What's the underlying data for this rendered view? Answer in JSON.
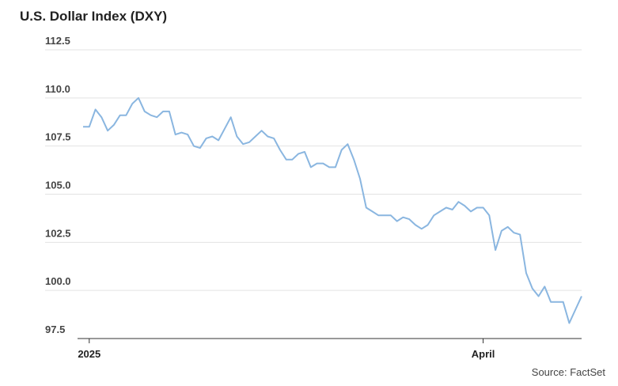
{
  "chart_data": {
    "type": "line",
    "title": "U.S. Dollar Index (DXY)",
    "source": "Source: FactSet",
    "categories": [
      null,
      "2025",
      null,
      null,
      null,
      null,
      null,
      null,
      null,
      null,
      null,
      null,
      null,
      null,
      null,
      null,
      null,
      null,
      null,
      null,
      null,
      null,
      null,
      null,
      null,
      null,
      null,
      null,
      null,
      null,
      null,
      null,
      null,
      null,
      null,
      null,
      null,
      null,
      null,
      null,
      null,
      null,
      null,
      null,
      null,
      null,
      null,
      null,
      null,
      null,
      null,
      null,
      null,
      null,
      null,
      null,
      null,
      null,
      null,
      null,
      null,
      null,
      null,
      null,
      null,
      "April",
      null,
      null,
      null,
      null,
      null,
      null,
      null,
      null,
      null,
      null,
      null,
      null,
      null,
      null,
      null,
      null
    ],
    "series": [
      {
        "name": "DXY",
        "color": "#8ab6e0",
        "values": [
          108.5,
          108.5,
          109.4,
          109.0,
          108.3,
          108.6,
          109.1,
          109.1,
          109.7,
          110.0,
          109.3,
          109.1,
          109.0,
          109.3,
          109.3,
          108.1,
          108.2,
          108.1,
          107.5,
          107.4,
          107.9,
          108.0,
          107.8,
          108.4,
          109.0,
          108.0,
          107.6,
          107.7,
          108.0,
          108.3,
          108.0,
          107.9,
          107.3,
          106.8,
          106.8,
          107.1,
          107.2,
          106.4,
          106.6,
          106.6,
          106.4,
          106.4,
          107.3,
          107.6,
          106.8,
          105.8,
          104.3,
          104.1,
          103.9,
          103.9,
          103.9,
          103.6,
          103.8,
          103.7,
          103.4,
          103.2,
          103.4,
          103.9,
          104.1,
          104.3,
          104.2,
          104.6,
          104.4,
          104.1,
          104.3,
          104.3,
          103.9,
          102.1,
          103.1,
          103.3,
          103.0,
          102.9,
          100.9,
          100.1,
          99.7,
          100.2,
          99.4,
          99.4,
          99.4,
          98.3,
          99.0,
          99.7
        ]
      }
    ],
    "ylim": [
      97.5,
      112.5
    ],
    "yticks": [
      97.5,
      {
        "value": 100,
        "label": "100.0"
      },
      102.5,
      {
        "value": 105,
        "label": "105.0"
      },
      107.5,
      {
        "value": 110,
        "label": "110.0"
      },
      112.5
    ],
    "grid": true
  }
}
